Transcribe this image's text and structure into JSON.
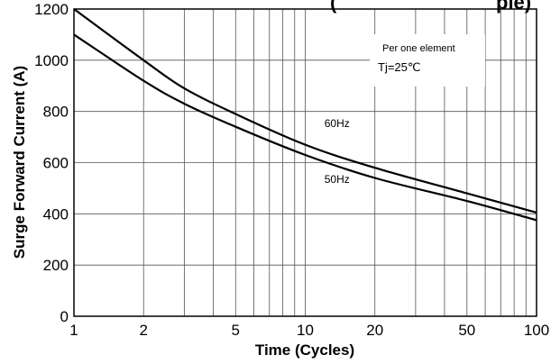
{
  "chart_data": {
    "type": "line",
    "title_partial": "(",
    "title_partial_right": "ple)",
    "xlabel": "Time (Cycles)",
    "ylabel": "Surge Forward Current (A)",
    "x_scale": "log",
    "xlim": [
      1,
      100
    ],
    "ylim": [
      0,
      1200
    ],
    "x_ticks": [
      1,
      2,
      5,
      10,
      20,
      50,
      100
    ],
    "y_ticks": [
      0,
      200,
      400,
      600,
      800,
      1000,
      1200
    ],
    "grid": true,
    "annotations": [
      "Per one element",
      "Tj=25℃"
    ],
    "series": [
      {
        "name": "60Hz",
        "x": [
          1,
          2,
          3,
          5,
          10,
          20,
          50,
          100
        ],
        "y": [
          1200,
          1000,
          890,
          790,
          670,
          580,
          480,
          405
        ]
      },
      {
        "name": "50Hz",
        "x": [
          1,
          2,
          3,
          5,
          10,
          20,
          50,
          100
        ],
        "y": [
          1100,
          920,
          830,
          740,
          630,
          540,
          450,
          375
        ]
      }
    ]
  }
}
